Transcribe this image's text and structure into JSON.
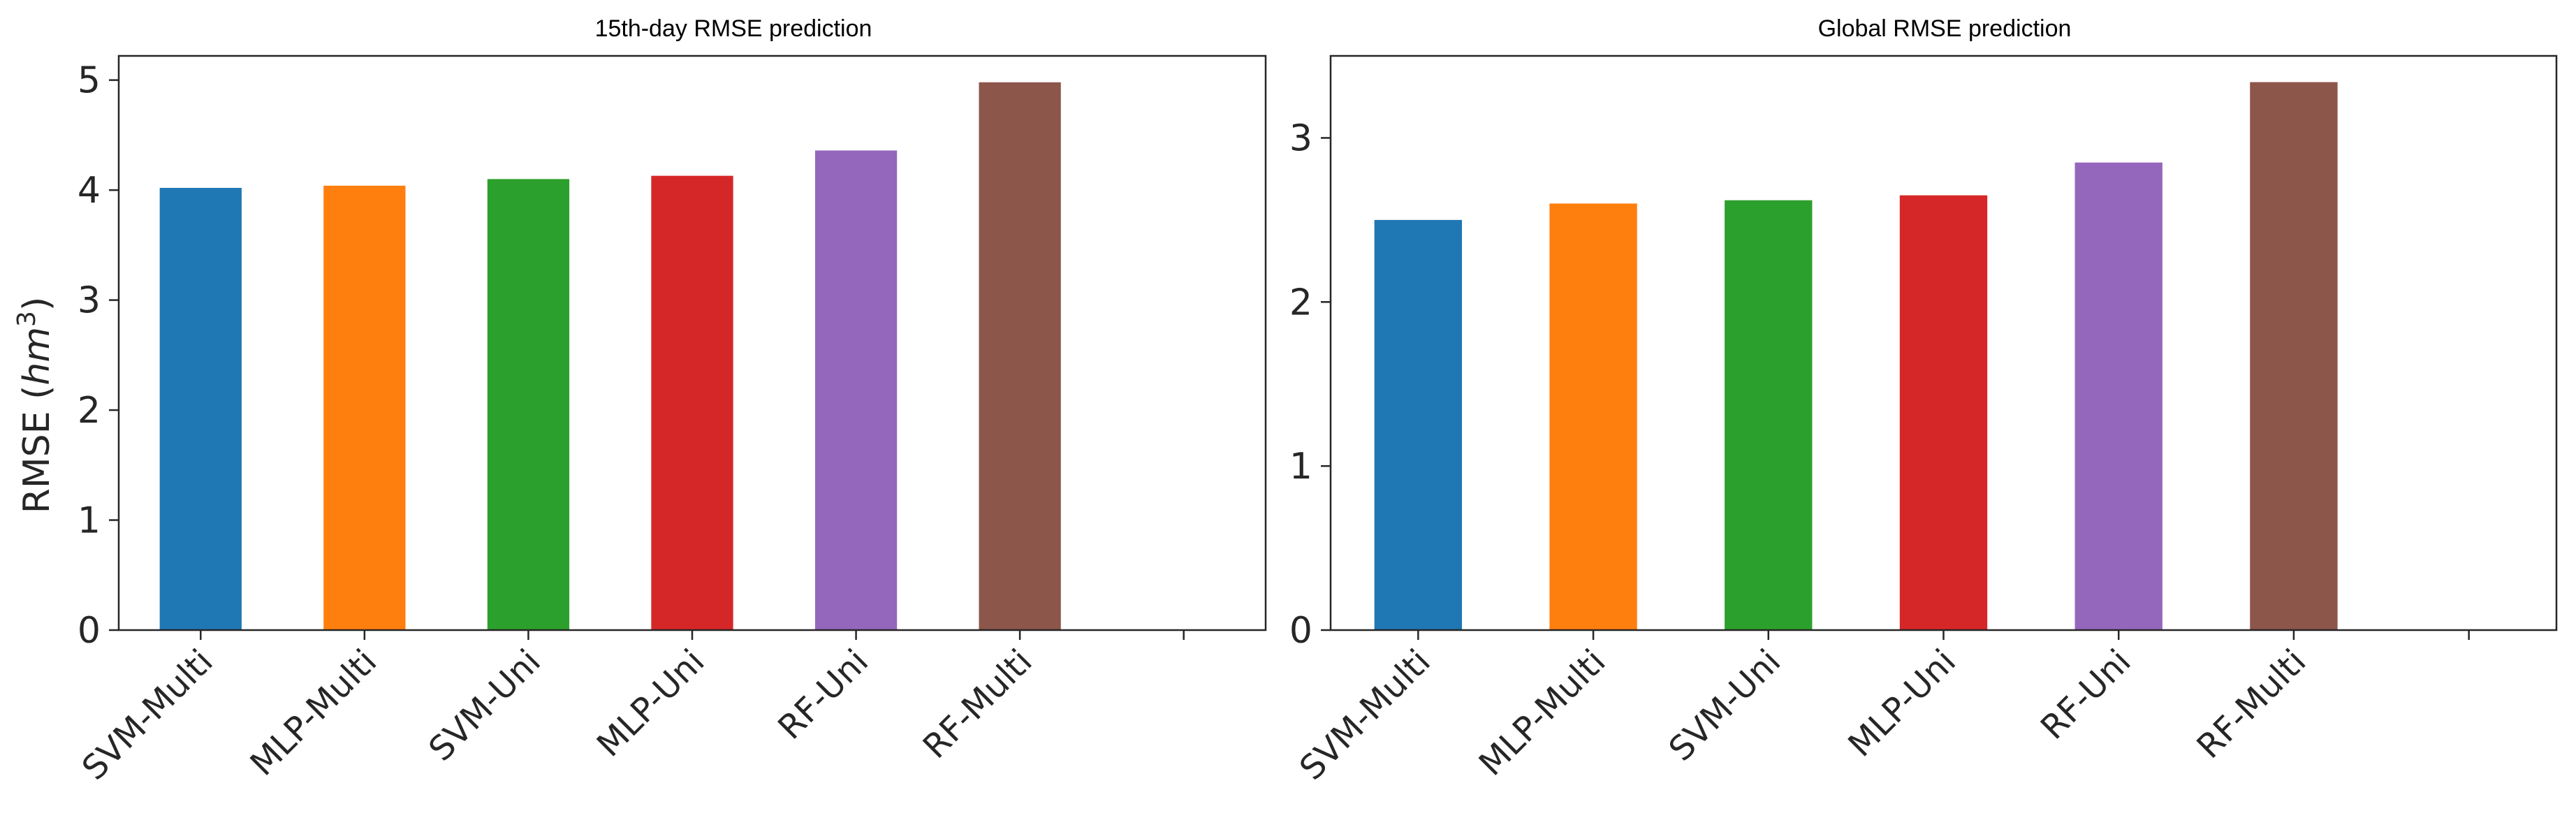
{
  "colors": {
    "SVM-Multi": "#1f77b4",
    "MLP-Multi": "#ff7f0e",
    "SVM-Uni": "#2ca02c",
    "MLP-Uni": "#d62728",
    "RF-Uni": "#9467bd",
    "RF-Multi": "#8c564b",
    "axis": "#262626"
  },
  "chart_data": [
    {
      "type": "bar",
      "title": "15th-day RMSE prediction",
      "xlabel": "",
      "ylabel": "RMSE (hm³)",
      "ylabel_parts": {
        "base": "RMSE (",
        "italic": "hm",
        "sup": "3",
        "close": ")"
      },
      "categories": [
        "SVM-Multi",
        "MLP-Multi",
        "SVM-Uni",
        "MLP-Uni",
        "RF-Uni",
        "RF-Multi"
      ],
      "values": [
        4.02,
        4.04,
        4.1,
        4.13,
        4.36,
        4.98
      ],
      "yticks": [
        "0",
        "1",
        "2",
        "3",
        "4",
        "5"
      ],
      "ylim": [
        0,
        5.22
      ],
      "grid": false,
      "legend": "none"
    },
    {
      "type": "bar",
      "title": "Global RMSE prediction",
      "xlabel": "",
      "ylabel": "",
      "categories": [
        "SVM-Multi",
        "MLP-Multi",
        "SVM-Uni",
        "MLP-Uni",
        "RF-Uni",
        "RF-Multi"
      ],
      "values": [
        2.5,
        2.6,
        2.62,
        2.65,
        2.85,
        3.34
      ],
      "yticks": [
        "0",
        "1",
        "2",
        "3"
      ],
      "ylim": [
        0,
        3.5
      ],
      "grid": false,
      "legend": "none"
    }
  ]
}
